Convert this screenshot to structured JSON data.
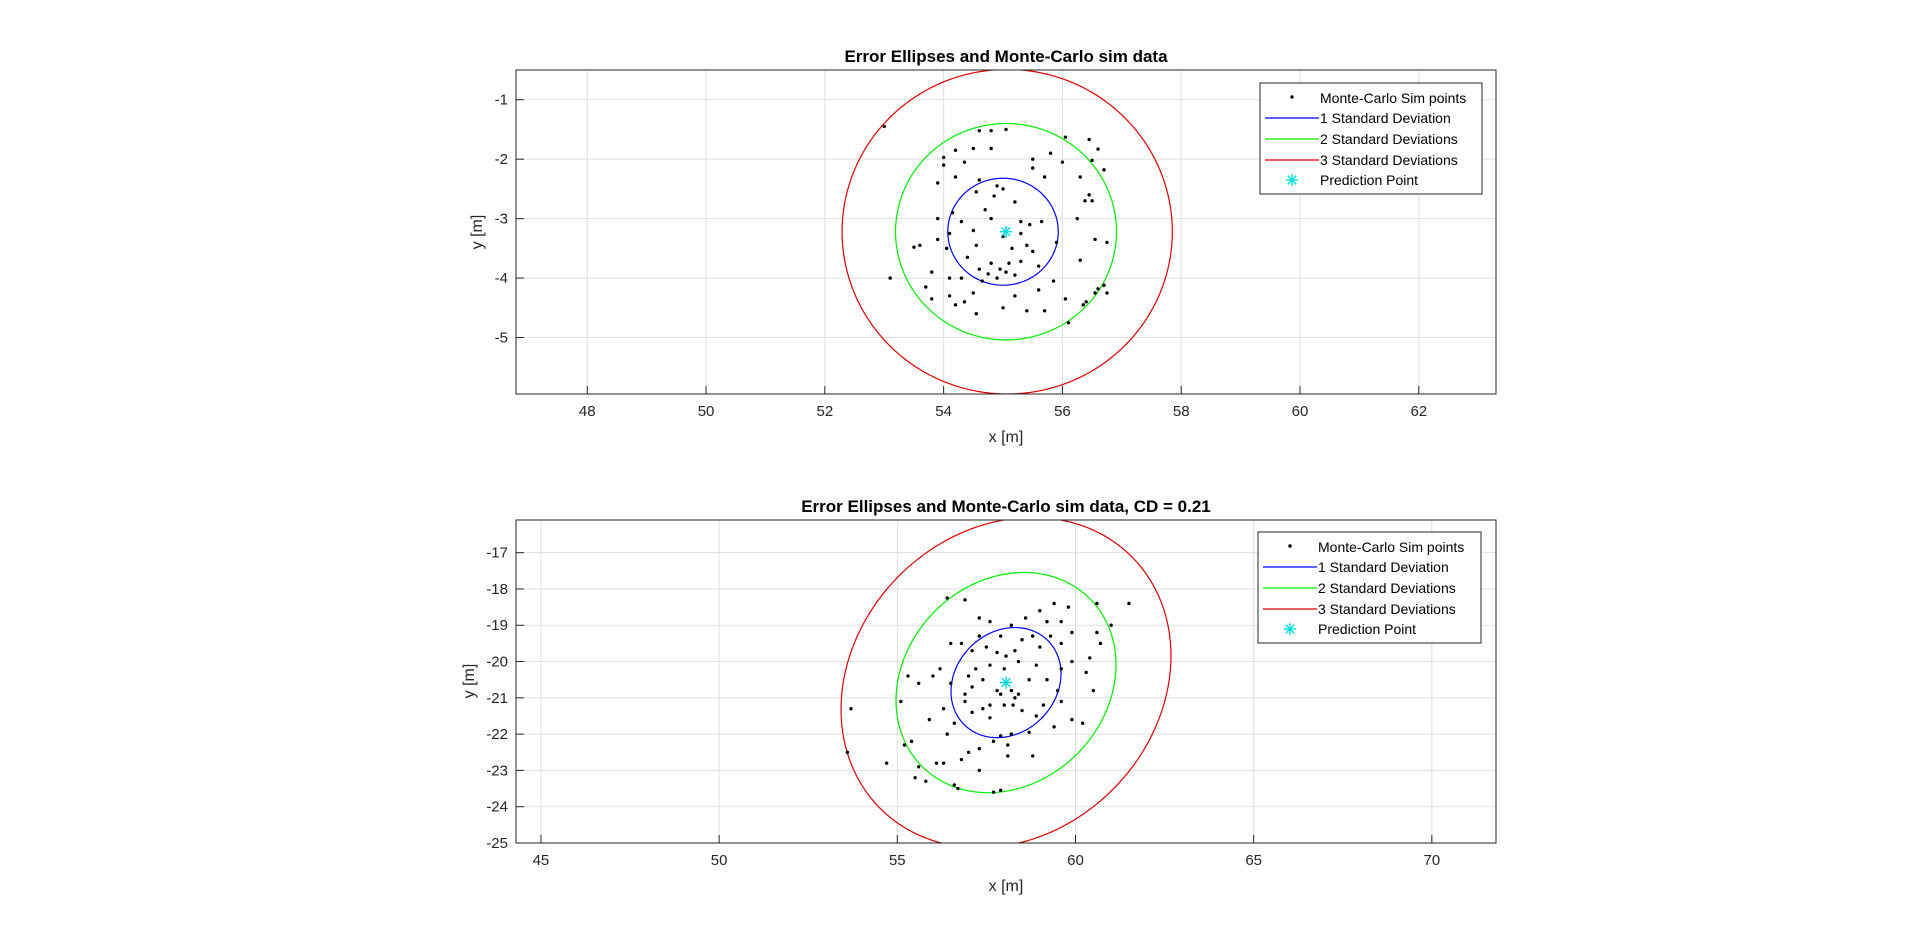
{
  "colors": {
    "background": "#ffffff",
    "axes_bg": "#ffffff",
    "grid": "#dfdfdf",
    "axis_line": "#262626",
    "sim_points": "#000000",
    "sd1": "#0000ff",
    "sd2": "#00ee00",
    "sd3": "#dd0000",
    "prediction": "#00dddd"
  },
  "chart_data": [
    {
      "type": "scatter",
      "title": "Error Ellipses and Monte-Carlo sim data",
      "xlabel": "x [m]",
      "ylabel": "y [m]",
      "xlim": [
        46.8,
        63.3
      ],
      "ylim": [
        -5.95,
        -0.5
      ],
      "xticks": [
        48,
        50,
        52,
        54,
        56,
        58,
        60,
        62
      ],
      "yticks": [
        -1,
        -2,
        -3,
        -4,
        -5
      ],
      "grid": true,
      "legend_position": "top-right",
      "legend": [
        "Monte-Carlo Sim points",
        "1 Standard Deviation",
        "2 Standard Deviations",
        "3 Standard Deviations",
        "Prediction Point"
      ],
      "prediction_point": {
        "x": 55.05,
        "y": -3.22
      },
      "ellipses": [
        {
          "name": "1 Standard Deviation",
          "cx": 55.0,
          "cy": -3.22,
          "rx": 0.93,
          "ry": 0.9,
          "angle_deg": 0
        },
        {
          "name": "2 Standard Deviations",
          "cx": 55.05,
          "cy": -3.22,
          "rx": 1.86,
          "ry": 1.82,
          "angle_deg": 0
        },
        {
          "name": "3 Standard Deviations",
          "cx": 55.07,
          "cy": -3.22,
          "rx": 2.78,
          "ry": 2.73,
          "angle_deg": 0
        }
      ],
      "points": [
        [
          53.0,
          -1.45
        ],
        [
          54.6,
          -1.52
        ],
        [
          54.8,
          -1.52
        ],
        [
          55.05,
          -1.5
        ],
        [
          56.05,
          -1.63
        ],
        [
          56.45,
          -1.67
        ],
        [
          56.6,
          -1.83
        ],
        [
          54.0,
          -1.97
        ],
        [
          54.2,
          -1.85
        ],
        [
          54.5,
          -1.82
        ],
        [
          54.8,
          -1.82
        ],
        [
          55.5,
          -2.0
        ],
        [
          55.8,
          -1.9
        ],
        [
          56.0,
          -2.05
        ],
        [
          56.5,
          -2.02
        ],
        [
          56.7,
          -2.18
        ],
        [
          54.0,
          -2.1
        ],
        [
          54.35,
          -2.05
        ],
        [
          53.9,
          -2.4
        ],
        [
          54.2,
          -2.3
        ],
        [
          54.6,
          -2.35
        ],
        [
          54.9,
          -2.45
        ],
        [
          55.0,
          -2.5
        ],
        [
          55.5,
          -2.15
        ],
        [
          55.7,
          -2.3
        ],
        [
          56.3,
          -2.3
        ],
        [
          56.45,
          -2.6
        ],
        [
          56.5,
          -2.7
        ],
        [
          56.38,
          -2.7
        ],
        [
          54.55,
          -2.55
        ],
        [
          54.85,
          -2.62
        ],
        [
          54.7,
          -2.85
        ],
        [
          55.2,
          -2.72
        ],
        [
          54.15,
          -2.9
        ],
        [
          53.9,
          -3.0
        ],
        [
          54.1,
          -3.25
        ],
        [
          54.3,
          -3.05
        ],
        [
          54.5,
          -3.2
        ],
        [
          54.8,
          -3.0
        ],
        [
          55.3,
          -3.05
        ],
        [
          55.45,
          -3.1
        ],
        [
          55.65,
          -3.05
        ],
        [
          55.3,
          -3.25
        ],
        [
          56.25,
          -3.0
        ],
        [
          56.55,
          -3.35
        ],
        [
          56.75,
          -3.4
        ],
        [
          53.6,
          -3.45
        ],
        [
          53.5,
          -3.48
        ],
        [
          53.9,
          -3.35
        ],
        [
          54.05,
          -3.5
        ],
        [
          54.55,
          -3.45
        ],
        [
          55.0,
          -3.3
        ],
        [
          55.15,
          -3.5
        ],
        [
          55.4,
          -3.45
        ],
        [
          55.9,
          -3.4
        ],
        [
          56.3,
          -3.7
        ],
        [
          53.8,
          -3.9
        ],
        [
          53.7,
          -4.15
        ],
        [
          53.1,
          -4.0
        ],
        [
          54.4,
          -3.65
        ],
        [
          54.6,
          -3.85
        ],
        [
          54.8,
          -3.75
        ],
        [
          54.75,
          -3.93
        ],
        [
          54.9,
          -4.0
        ],
        [
          55.1,
          -3.75
        ],
        [
          55.3,
          -3.72
        ],
        [
          55.05,
          -3.9
        ],
        [
          55.6,
          -3.8
        ],
        [
          54.1,
          -4.0
        ],
        [
          54.3,
          -4.0
        ],
        [
          54.1,
          -4.3
        ],
        [
          54.5,
          -4.25
        ],
        [
          54.65,
          -4.05
        ],
        [
          55.2,
          -4.3
        ],
        [
          55.6,
          -4.2
        ],
        [
          55.85,
          -4.05
        ],
        [
          56.05,
          -4.35
        ],
        [
          56.4,
          -4.4
        ],
        [
          56.35,
          -4.45
        ],
        [
          56.55,
          -4.25
        ],
        [
          56.6,
          -4.18
        ],
        [
          56.7,
          -4.12
        ],
        [
          56.75,
          -4.25
        ],
        [
          53.8,
          -4.35
        ],
        [
          54.2,
          -4.45
        ],
        [
          54.35,
          -4.4
        ],
        [
          54.55,
          -4.6
        ],
        [
          55.0,
          -4.5
        ],
        [
          55.4,
          -4.55
        ],
        [
          55.7,
          -4.55
        ],
        [
          56.1,
          -4.75
        ],
        [
          55.2,
          -3.95
        ],
        [
          54.95,
          -3.85
        ],
        [
          55.5,
          -3.55
        ]
      ]
    },
    {
      "type": "scatter",
      "title": "Error Ellipses and Monte-Carlo sim data, CD = 0.21",
      "xlabel": "x [m]",
      "ylabel": "y [m]",
      "xlim": [
        44.3,
        71.8
      ],
      "ylim": [
        -25.0,
        -16.1
      ],
      "xticks": [
        45,
        50,
        55,
        60,
        65,
        70
      ],
      "yticks": [
        -17,
        -18,
        -19,
        -20,
        -21,
        -22,
        -23,
        -24,
        -25
      ],
      "grid": true,
      "legend_position": "top-right",
      "legend": [
        "Monte-Carlo Sim points",
        "1 Standard Deviation",
        "2 Standard Deviations",
        "3 Standard Deviations",
        "Prediction Point"
      ],
      "prediction_point": {
        "x": 58.05,
        "y": -20.58
      },
      "ellipses": [
        {
          "name": "1 Standard Deviation",
          "cx": 58.05,
          "cy": -20.58,
          "rx": 1.65,
          "ry": 1.4,
          "angle_deg": 42
        },
        {
          "name": "2 Standard Deviations",
          "cx": 58.05,
          "cy": -20.58,
          "rx": 3.3,
          "ry": 2.8,
          "angle_deg": 42
        },
        {
          "name": "3 Standard Deviations",
          "cx": 58.05,
          "cy": -20.58,
          "rx": 4.95,
          "ry": 4.2,
          "angle_deg": 42
        }
      ],
      "points": [
        [
          53.7,
          -21.3
        ],
        [
          53.6,
          -22.5
        ],
        [
          54.7,
          -22.8
        ],
        [
          55.2,
          -22.3
        ],
        [
          55.4,
          -22.2
        ],
        [
          55.5,
          -23.2
        ],
        [
          55.8,
          -23.3
        ],
        [
          55.6,
          -22.9
        ],
        [
          56.1,
          -22.8
        ],
        [
          56.3,
          -22.8
        ],
        [
          56.6,
          -23.4
        ],
        [
          56.7,
          -23.5
        ],
        [
          57.7,
          -23.6
        ],
        [
          57.9,
          -23.55
        ],
        [
          56.8,
          -22.7
        ],
        [
          57.3,
          -22.4
        ],
        [
          57.7,
          -22.2
        ],
        [
          57.9,
          -22.05
        ],
        [
          58.2,
          -22.0
        ],
        [
          58.1,
          -22.3
        ],
        [
          58.8,
          -22.6
        ],
        [
          58.7,
          -21.95
        ],
        [
          56.3,
          -21.3
        ],
        [
          56.6,
          -21.7
        ],
        [
          56.9,
          -21.1
        ],
        [
          57.1,
          -21.4
        ],
        [
          57.4,
          -21.3
        ],
        [
          57.6,
          -21.2
        ],
        [
          58.0,
          -21.2
        ],
        [
          58.25,
          -21.2
        ],
        [
          58.5,
          -21.35
        ],
        [
          58.9,
          -21.5
        ],
        [
          59.1,
          -21.2
        ],
        [
          59.4,
          -21.8
        ],
        [
          59.9,
          -21.6
        ],
        [
          60.2,
          -21.7
        ],
        [
          60.5,
          -20.8
        ],
        [
          56.0,
          -20.4
        ],
        [
          55.3,
          -20.4
        ],
        [
          55.6,
          -20.6
        ],
        [
          56.2,
          -20.2
        ],
        [
          56.5,
          -20.6
        ],
        [
          56.9,
          -20.9
        ],
        [
          57.1,
          -20.7
        ],
        [
          57.4,
          -20.5
        ],
        [
          57.8,
          -20.8
        ],
        [
          58.2,
          -20.8
        ],
        [
          58.4,
          -20.9
        ],
        [
          58.7,
          -20.5
        ],
        [
          59.2,
          -20.5
        ],
        [
          59.6,
          -20.2
        ],
        [
          59.9,
          -20.0
        ],
        [
          60.4,
          -19.9
        ],
        [
          60.7,
          -19.5
        ],
        [
          61.0,
          -19.0
        ],
        [
          61.5,
          -18.4
        ],
        [
          60.6,
          -19.2
        ],
        [
          60.6,
          -18.4
        ],
        [
          59.4,
          -18.4
        ],
        [
          59.0,
          -18.6
        ],
        [
          59.8,
          -18.5
        ],
        [
          59.6,
          -18.9
        ],
        [
          59.2,
          -18.9
        ],
        [
          58.6,
          -18.8
        ],
        [
          58.2,
          -19.0
        ],
        [
          57.9,
          -19.3
        ],
        [
          57.6,
          -18.9
        ],
        [
          57.3,
          -18.8
        ],
        [
          56.9,
          -18.3
        ],
        [
          56.4,
          -18.25
        ],
        [
          56.5,
          -19.5
        ],
        [
          56.8,
          -19.5
        ],
        [
          57.1,
          -19.7
        ],
        [
          57.3,
          -19.3
        ],
        [
          57.5,
          -19.6
        ],
        [
          57.8,
          -19.75
        ],
        [
          58.05,
          -19.85
        ],
        [
          58.3,
          -19.7
        ],
        [
          58.5,
          -19.4
        ],
        [
          58.8,
          -19.3
        ],
        [
          59.0,
          -19.6
        ],
        [
          59.3,
          -19.3
        ],
        [
          59.6,
          -19.5
        ],
        [
          59.9,
          -19.2
        ],
        [
          58.0,
          -20.2
        ],
        [
          58.4,
          -20.0
        ],
        [
          57.6,
          -20.1
        ],
        [
          57.2,
          -20.2
        ],
        [
          57.0,
          -20.4
        ],
        [
          58.9,
          -20.1
        ],
        [
          59.5,
          -20.8
        ],
        [
          55.9,
          -21.6
        ],
        [
          56.4,
          -22.0
        ],
        [
          57.0,
          -22.5
        ],
        [
          57.3,
          -23.0
        ],
        [
          58.1,
          -22.6
        ],
        [
          59.6,
          -21.1
        ],
        [
          60.3,
          -20.3
        ],
        [
          55.1,
          -21.1
        ],
        [
          57.9,
          -20.9
        ],
        [
          58.3,
          -21.0
        ],
        [
          57.6,
          -21.55
        ]
      ]
    }
  ]
}
